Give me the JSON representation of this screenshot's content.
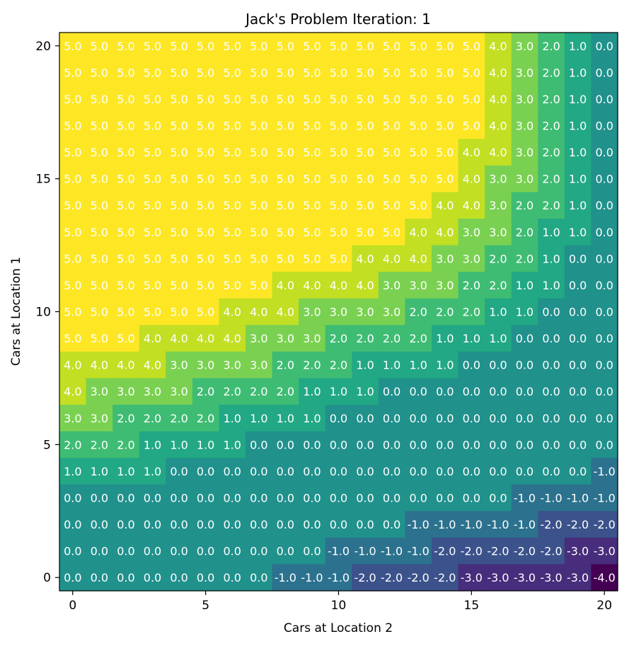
{
  "chart_data": {
    "type": "heatmap",
    "title": "Jack's Problem Iteration: 1",
    "xlabel": "Cars at Location 2",
    "ylabel": "Cars at Location 1",
    "x": [
      0,
      1,
      2,
      3,
      4,
      5,
      6,
      7,
      8,
      9,
      10,
      11,
      12,
      13,
      14,
      15,
      16,
      17,
      18,
      19,
      20
    ],
    "y": [
      0,
      1,
      2,
      3,
      4,
      5,
      6,
      7,
      8,
      9,
      10,
      11,
      12,
      13,
      14,
      15,
      16,
      17,
      18,
      19,
      20
    ],
    "xticks": [
      0,
      5,
      10,
      15,
      20
    ],
    "yticks": [
      0,
      5,
      10,
      15,
      20
    ],
    "xlim": [
      -0.5,
      20.5
    ],
    "ylim": [
      -0.5,
      20.5
    ],
    "colormap": "viridis",
    "vmin": -4,
    "vmax": 5,
    "values_by_row_y20_to_y0": [
      [
        5,
        5,
        5,
        5,
        5,
        5,
        5,
        5,
        5,
        5,
        5,
        5,
        5,
        5,
        5,
        5,
        4,
        3,
        2,
        1,
        0
      ],
      [
        5,
        5,
        5,
        5,
        5,
        5,
        5,
        5,
        5,
        5,
        5,
        5,
        5,
        5,
        5,
        5,
        4,
        3,
        2,
        1,
        0
      ],
      [
        5,
        5,
        5,
        5,
        5,
        5,
        5,
        5,
        5,
        5,
        5,
        5,
        5,
        5,
        5,
        5,
        4,
        3,
        2,
        1,
        0
      ],
      [
        5,
        5,
        5,
        5,
        5,
        5,
        5,
        5,
        5,
        5,
        5,
        5,
        5,
        5,
        5,
        5,
        4,
        3,
        2,
        1,
        0
      ],
      [
        5,
        5,
        5,
        5,
        5,
        5,
        5,
        5,
        5,
        5,
        5,
        5,
        5,
        5,
        5,
        4,
        4,
        3,
        2,
        1,
        0
      ],
      [
        5,
        5,
        5,
        5,
        5,
        5,
        5,
        5,
        5,
        5,
        5,
        5,
        5,
        5,
        5,
        4,
        3,
        3,
        2,
        1,
        0
      ],
      [
        5,
        5,
        5,
        5,
        5,
        5,
        5,
        5,
        5,
        5,
        5,
        5,
        5,
        5,
        4,
        4,
        3,
        2,
        2,
        1,
        0
      ],
      [
        5,
        5,
        5,
        5,
        5,
        5,
        5,
        5,
        5,
        5,
        5,
        5,
        5,
        4,
        4,
        3,
        3,
        2,
        1,
        1,
        0
      ],
      [
        5,
        5,
        5,
        5,
        5,
        5,
        5,
        5,
        5,
        5,
        5,
        4,
        4,
        4,
        3,
        3,
        2,
        2,
        1,
        0,
        0
      ],
      [
        5,
        5,
        5,
        5,
        5,
        5,
        5,
        5,
        4,
        4,
        4,
        4,
        3,
        3,
        3,
        2,
        2,
        1,
        1,
        0,
        0
      ],
      [
        5,
        5,
        5,
        5,
        5,
        5,
        4,
        4,
        4,
        3,
        3,
        3,
        3,
        2,
        2,
        2,
        1,
        1,
        0,
        0,
        0
      ],
      [
        5,
        5,
        5,
        4,
        4,
        4,
        4,
        3,
        3,
        3,
        2,
        2,
        2,
        2,
        1,
        1,
        1,
        0,
        0,
        0,
        0
      ],
      [
        4,
        4,
        4,
        4,
        3,
        3,
        3,
        3,
        2,
        2,
        2,
        1,
        1,
        1,
        1,
        0,
        0,
        0,
        0,
        0,
        0
      ],
      [
        4,
        3,
        3,
        3,
        3,
        2,
        2,
        2,
        2,
        1,
        1,
        1,
        0,
        0,
        0,
        0,
        0,
        0,
        0,
        0,
        0
      ],
      [
        3,
        3,
        2,
        2,
        2,
        2,
        1,
        1,
        1,
        1,
        0,
        0,
        0,
        0,
        0,
        0,
        0,
        0,
        0,
        0,
        0
      ],
      [
        2,
        2,
        2,
        1,
        1,
        1,
        1,
        0,
        0,
        0,
        0,
        0,
        0,
        0,
        0,
        0,
        0,
        0,
        0,
        0,
        0
      ],
      [
        1,
        1,
        1,
        1,
        0,
        0,
        0,
        0,
        0,
        0,
        0,
        0,
        0,
        0,
        0,
        0,
        0,
        0,
        0,
        0,
        -1
      ],
      [
        0,
        0,
        0,
        0,
        0,
        0,
        0,
        0,
        0,
        0,
        0,
        0,
        0,
        0,
        0,
        0,
        0,
        -1,
        -1,
        -1,
        -1
      ],
      [
        0,
        0,
        0,
        0,
        0,
        0,
        0,
        0,
        0,
        0,
        0,
        0,
        0,
        -1,
        -1,
        -1,
        -1,
        -1,
        -2,
        -2,
        -2
      ],
      [
        0,
        0,
        0,
        0,
        0,
        0,
        0,
        0,
        0,
        0,
        -1,
        -1,
        -1,
        -1,
        -2,
        -2,
        -2,
        -2,
        -2,
        -3,
        -3
      ],
      [
        0,
        0,
        0,
        0,
        0,
        0,
        0,
        0,
        -1,
        -1,
        -1,
        -2,
        -2,
        -2,
        -2,
        -3,
        -3,
        -3,
        -3,
        -3,
        -4
      ]
    ],
    "colors": {
      "5": "#fde725",
      "4": "#c2df23",
      "3": "#7ad151",
      "2": "#3fbc73",
      "1": "#22a884",
      "0": "#21918c",
      "-1": "#2c728e",
      "-2": "#3b528b",
      "-3": "#472d7b",
      "-4": "#440154"
    }
  }
}
